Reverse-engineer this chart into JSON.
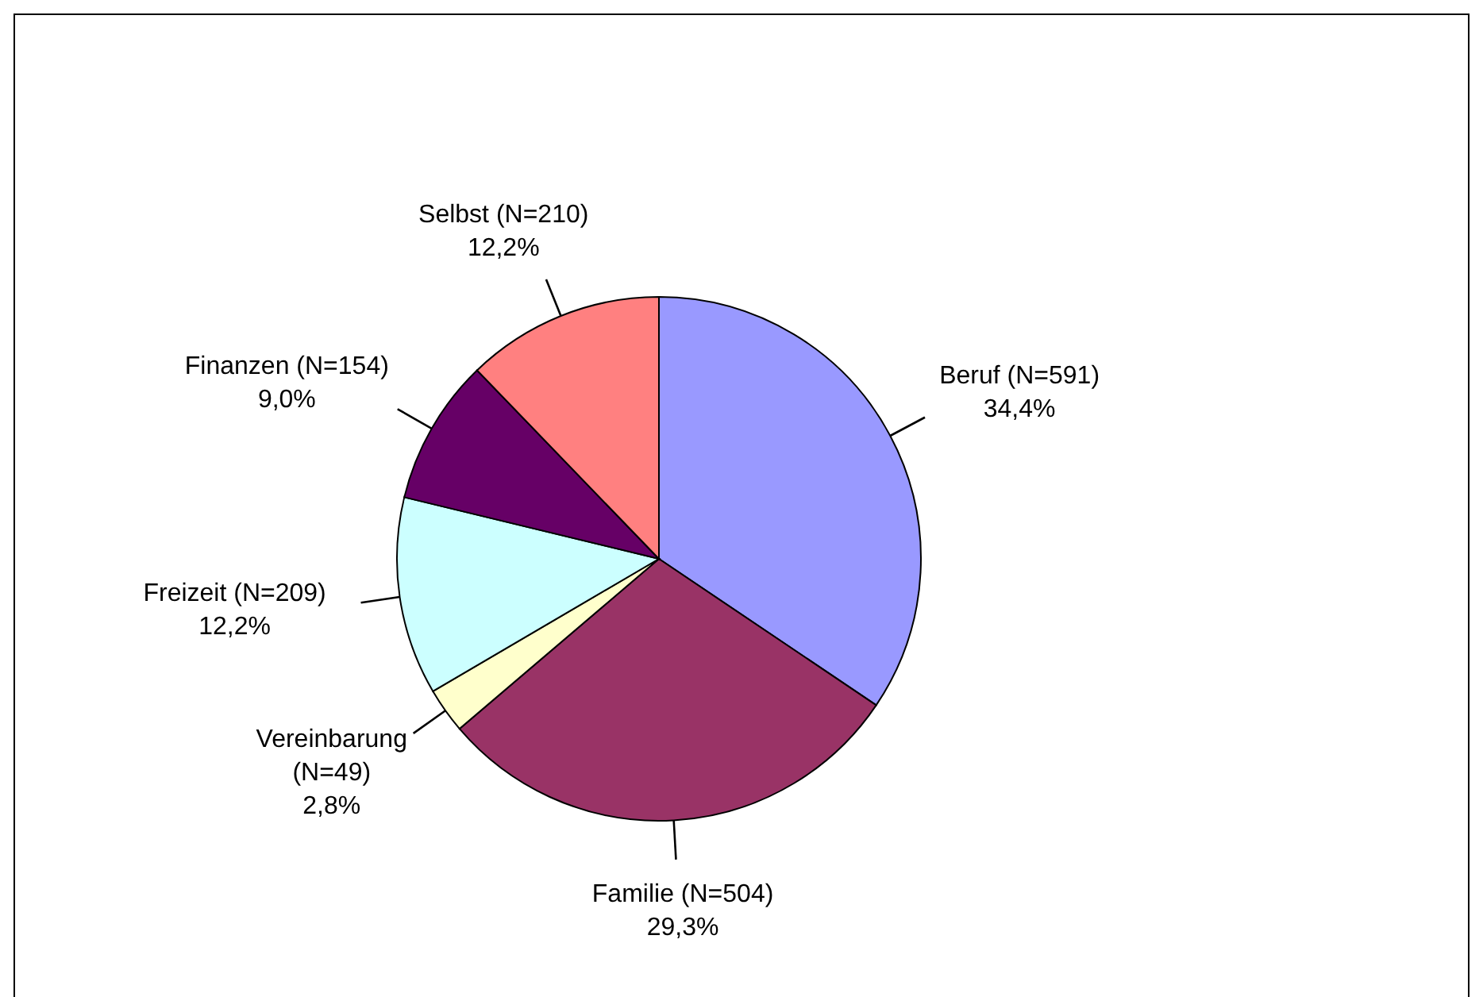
{
  "chart_data": {
    "type": "pie",
    "categories": [
      "Beruf (N=591)",
      "Familie (N=504)",
      "Vereinbarung (N=49)",
      "Freizeit (N=209)",
      "Finanzen (N=154)",
      "Selbst (N=210)"
    ],
    "values": [
      34.4,
      29.3,
      2.8,
      12.2,
      9.0,
      12.2
    ],
    "value_labels": [
      "34,4%",
      "29,3%",
      "2,8%",
      "12,2%",
      "9,0%",
      "12,2%"
    ],
    "colors": [
      "#9999ff",
      "#993366",
      "#ffffcc",
      "#ccffff",
      "#660066",
      "#ff8080"
    ]
  }
}
